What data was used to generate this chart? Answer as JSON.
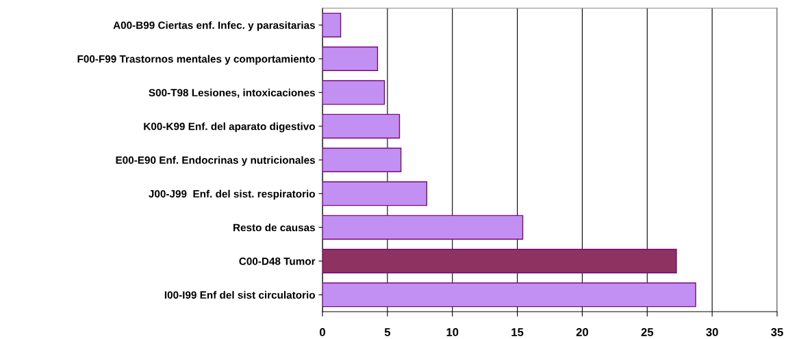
{
  "chart_data": {
    "type": "bar",
    "orientation": "horizontal",
    "categories": [
      "A00-B99 Ciertas enf. Infec. y parasitarias",
      "F00-F99 Trastornos mentales y comportamiento",
      "S00-T98 Lesiones, intoxicaciones",
      "K00-K99 Enf. del aparato digestivo",
      "E00-E90 Enf. Endocrinas y nutricionales",
      "J00-J99  Enf. del sist. respiratorio",
      "Resto de causas",
      "C00-D48 Tumor",
      "I00-I99 Enf del sist circulatorio"
    ],
    "values": [
      1.4,
      4.24,
      4.77,
      5.93,
      6.04,
      8.03,
      15.42,
      27.25,
      28.73
    ],
    "colors": [
      "#c28ff2",
      "#c28ff2",
      "#c28ff2",
      "#c28ff2",
      "#c28ff2",
      "#c28ff2",
      "#c28ff2",
      "#8e3262",
      "#c28ff2"
    ],
    "xlim": [
      0,
      35
    ],
    "xticks": [
      0,
      5,
      10,
      15,
      20,
      25,
      30,
      35
    ],
    "grid": "x",
    "legend": false
  }
}
